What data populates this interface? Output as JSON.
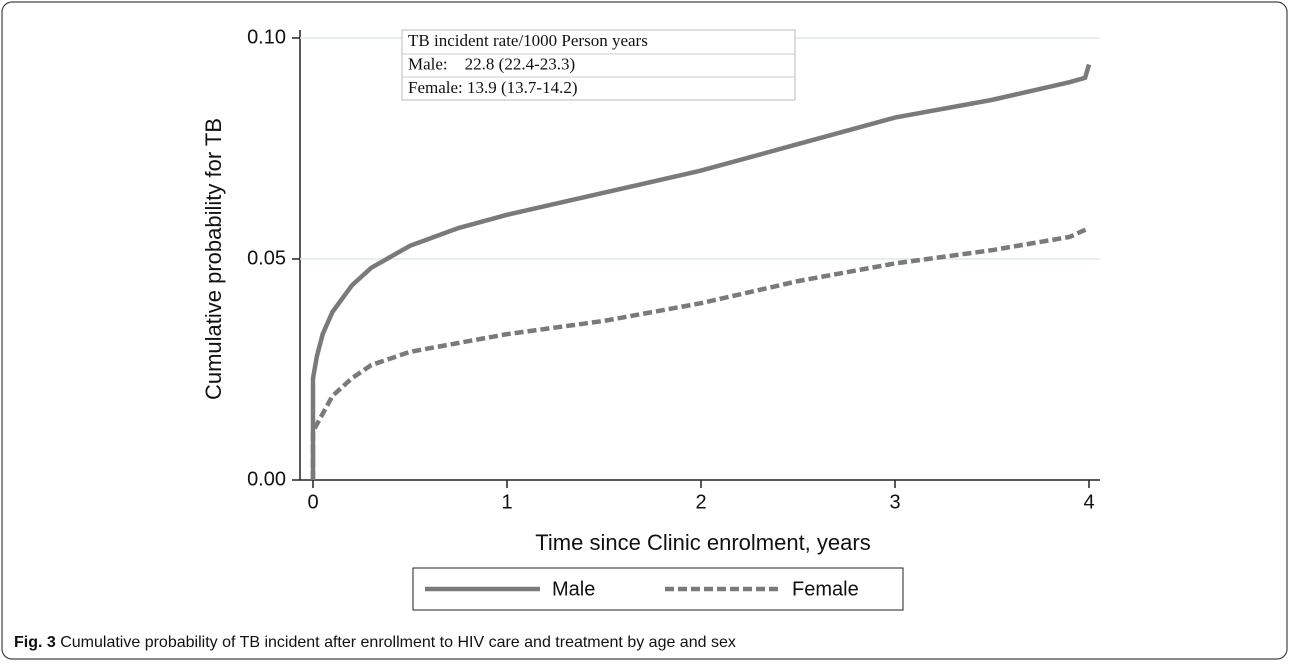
{
  "chart_data": {
    "type": "line",
    "y_label": "Cumulative probability for TB",
    "x_label": "Time since Clinic enrolment, years",
    "xlim": [
      0,
      4
    ],
    "xticks": [
      0,
      1,
      2,
      3,
      4
    ],
    "ylim": [
      0,
      0.1
    ],
    "yticks": [
      {
        "value": 0,
        "label": "0.00"
      },
      {
        "value": 0.05,
        "label": "0.05"
      },
      {
        "value": 0.1,
        "label": "0.10"
      }
    ],
    "grid": true,
    "annotations": [
      "TB incident rate/1000 Person years",
      "Male:    22.8 (22.4-23.3)",
      "Female: 13.9 (13.7-14.2)"
    ],
    "series": [
      {
        "name": "Male",
        "color": "#7a7a7a",
        "dash": false,
        "x": [
          0,
          0,
          0.02,
          0.05,
          0.1,
          0.2,
          0.3,
          0.5,
          0.75,
          1,
          1.5,
          2,
          2.5,
          3,
          3.5,
          3.9,
          3.98,
          4
        ],
        "values": [
          0,
          0.023,
          0.028,
          0.033,
          0.038,
          0.044,
          0.048,
          0.053,
          0.057,
          0.06,
          0.065,
          0.07,
          0.076,
          0.082,
          0.086,
          0.09,
          0.091,
          0.094
        ]
      },
      {
        "name": "Female",
        "color": "#7a7a7a",
        "dash": true,
        "x": [
          0,
          0,
          0.05,
          0.1,
          0.2,
          0.3,
          0.5,
          0.75,
          1,
          1.5,
          2,
          2.5,
          3,
          3.5,
          3.9,
          4
        ],
        "values": [
          0,
          0.011,
          0.015,
          0.019,
          0.023,
          0.026,
          0.029,
          0.031,
          0.033,
          0.036,
          0.04,
          0.045,
          0.049,
          0.052,
          0.055,
          0.057
        ]
      }
    ]
  },
  "caption": {
    "label": "Fig. 3",
    "text": " Cumulative probability of TB incident after enrollment to HIV care and treatment by age and sex"
  }
}
